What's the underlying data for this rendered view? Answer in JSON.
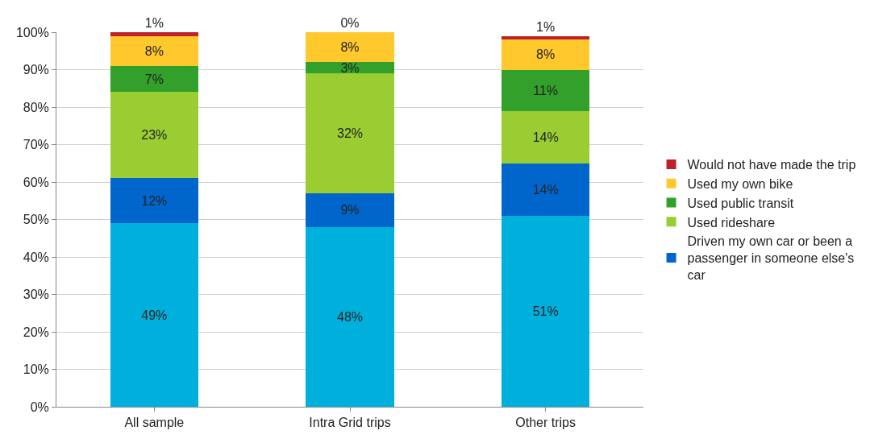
{
  "chart_data": {
    "type": "bar",
    "stacked": true,
    "categories": [
      "All sample",
      "Intra Grid trips",
      "Other trips"
    ],
    "series": [
      {
        "color": "#00b0dc",
        "values": [
          49,
          48,
          51
        ],
        "value_labels": [
          "49%",
          "48%",
          "51%"
        ]
      },
      {
        "name": "Driven my own car or been a passenger in someone else's car",
        "color": "#0066cc",
        "values": [
          12,
          9,
          14
        ],
        "value_labels": [
          "12%",
          "9%",
          "14%"
        ]
      },
      {
        "name": "Used rideshare",
        "color": "#9acd32",
        "values": [
          23,
          32,
          14
        ],
        "value_labels": [
          "23%",
          "32%",
          "14%"
        ]
      },
      {
        "name": "Used public transit",
        "color": "#33a02c",
        "values": [
          7,
          3,
          11
        ],
        "value_labels": [
          "7%",
          "3%",
          "11%"
        ]
      },
      {
        "name": "Used my own bike",
        "color": "#ffc82c",
        "values": [
          8,
          8,
          8
        ],
        "value_labels": [
          "8%",
          "8%",
          "8%"
        ]
      },
      {
        "name": "Would not have made the trip",
        "color": "#c0202a",
        "values": [
          1,
          0,
          1
        ],
        "value_labels": [
          "1%",
          "0%",
          "1%"
        ]
      }
    ],
    "ylim": [
      0,
      100
    ],
    "yticks": [
      {
        "value": 0,
        "label": "0%"
      },
      {
        "value": 10,
        "label": "10%"
      },
      {
        "value": 20,
        "label": "20%"
      },
      {
        "value": 30,
        "label": "30%"
      },
      {
        "value": 40,
        "label": "40%"
      },
      {
        "value": 50,
        "label": "50%"
      },
      {
        "value": 60,
        "label": "60%"
      },
      {
        "value": 70,
        "label": "70%"
      },
      {
        "value": 80,
        "label": "80%"
      },
      {
        "value": 90,
        "label": "90%"
      },
      {
        "value": 100,
        "label": "100%"
      }
    ],
    "grid": "y",
    "legend": "right"
  }
}
